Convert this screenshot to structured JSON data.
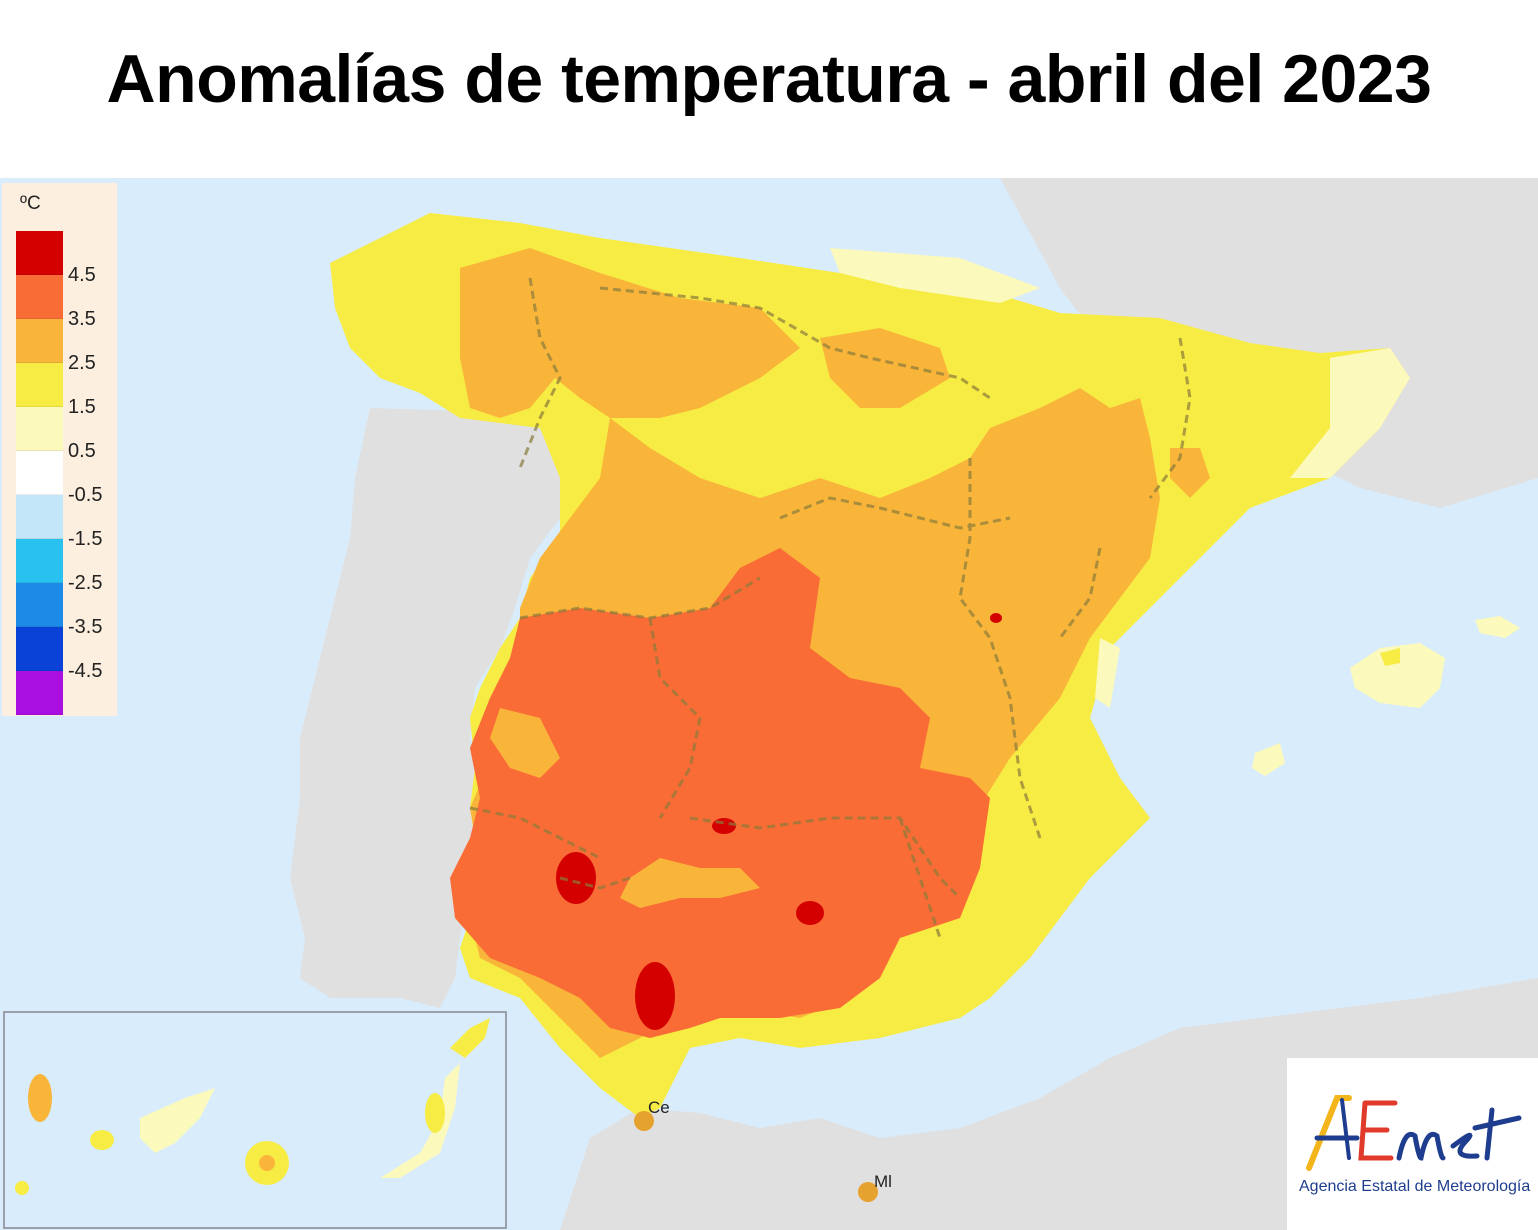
{
  "title": "Anomalías de temperatura - abril del 2023",
  "legend": {
    "unit": "ºC",
    "labels": [
      "4.5",
      "3.5",
      "2.5",
      "1.5",
      "0.5",
      "-0.5",
      "-1.5",
      "-2.5",
      "-3.5",
      "-4.5"
    ],
    "colors": [
      "#d40000",
      "#fa6c36",
      "#f8b53a",
      "#f7ec44",
      "#fcf9bc",
      "#ffffff",
      "#c3e7f9",
      "#29c2f0",
      "#1e8ae8",
      "#0a41d6",
      "#a80fe0"
    ]
  },
  "map": {
    "sea_color": "#d9ecfb",
    "land_other_color": "#e0e0e0",
    "city_labels": {
      "ceuta": "Ce",
      "melilla": "Ml"
    }
  },
  "logo": {
    "brand": "AEmet",
    "subtitle": "Agencia Estatal de Meteorología",
    "colors": {
      "A": "#f3b61a",
      "E": "#e03a2a",
      "met": "#1f3d8f"
    }
  }
}
